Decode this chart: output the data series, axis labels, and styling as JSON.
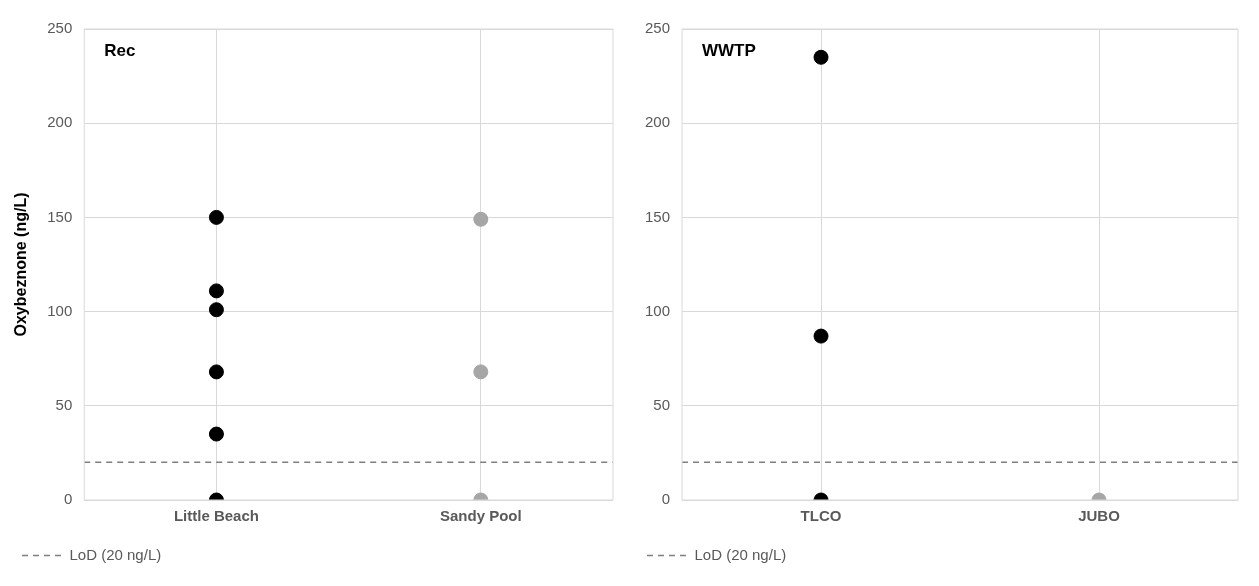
{
  "chart_data": [
    {
      "type": "scatter",
      "categories": [
        "Little Beach",
        "Sandy Pool"
      ],
      "ylabel": "Oxybeznone (ng/L)",
      "ylim": [
        0,
        250
      ],
      "yticks": [
        0,
        50,
        100,
        150,
        200,
        250
      ],
      "grid": true,
      "marker": "circle",
      "legend": "bottom",
      "annotations": [
        "Rec"
      ],
      "series": [
        {
          "color": "#000000",
          "x": [
            "Little Beach",
            "Little Beach",
            "Little Beach",
            "Little Beach",
            "Little Beach",
            "Little Beach"
          ],
          "values": [
            0,
            35,
            68,
            101,
            111,
            150
          ]
        },
        {
          "color": "#a6a6a6",
          "x": [
            "Sandy Pool",
            "Sandy Pool",
            "Sandy Pool"
          ],
          "values": [
            0,
            68,
            149
          ]
        }
      ],
      "ref_lines": [
        {
          "axis": "y",
          "value": 20,
          "label": "LoD (20 ng/L)",
          "color": "#7f7f7f",
          "line_style": "dashed"
        }
      ]
    },
    {
      "type": "scatter",
      "categories": [
        "TLCO",
        "JUBO"
      ],
      "ylim": [
        0,
        250
      ],
      "yticks": [
        0,
        50,
        100,
        150,
        200,
        250
      ],
      "grid": true,
      "marker": "circle",
      "legend": "bottom",
      "annotations": [
        "WWTP"
      ],
      "series": [
        {
          "color": "#000000",
          "x": [
            "TLCO",
            "TLCO",
            "TLCO"
          ],
          "values": [
            0,
            87,
            235
          ]
        },
        {
          "color": "#a6a6a6",
          "x": [
            "JUBO"
          ],
          "values": [
            0
          ]
        }
      ],
      "ref_lines": [
        {
          "axis": "y",
          "value": 20,
          "label": "LoD (20 ng/L)",
          "color": "#7f7f7f",
          "line_style": "dashed"
        }
      ]
    }
  ]
}
